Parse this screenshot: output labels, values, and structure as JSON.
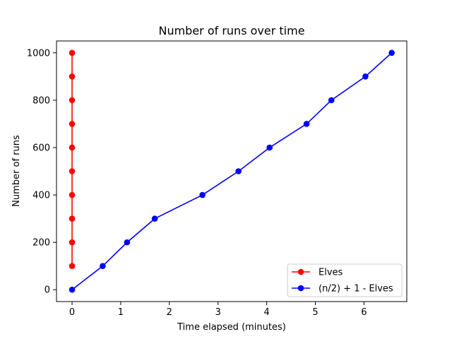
{
  "chart_data": {
    "type": "line",
    "title": "Number of runs over time",
    "xlabel": "Time elapsed (minutes)",
    "ylabel": "Number of runs",
    "xlim": [
      -0.32,
      6.88
    ],
    "ylim": [
      -50,
      1050
    ],
    "xticks": [
      0,
      1,
      2,
      3,
      4,
      5,
      6
    ],
    "yticks": [
      0,
      200,
      400,
      600,
      800,
      1000
    ],
    "grid": false,
    "legend_position": "lower-right",
    "series": [
      {
        "name": "Elves",
        "color": "#ff0000",
        "marker": "circle",
        "x": [
          0,
          0,
          0,
          0,
          0,
          0,
          0,
          0,
          0,
          0
        ],
        "y": [
          100,
          200,
          300,
          400,
          500,
          600,
          700,
          800,
          900,
          1000
        ]
      },
      {
        "name": "(n/2) + 1 - Elves",
        "color": "#0000ff",
        "marker": "circle",
        "x": [
          0,
          0.63,
          1.13,
          1.7,
          2.68,
          3.42,
          4.06,
          4.82,
          5.33,
          6.03,
          6.57
        ],
        "y": [
          0,
          100,
          200,
          300,
          400,
          500,
          600,
          700,
          800,
          900,
          1000
        ]
      }
    ]
  }
}
